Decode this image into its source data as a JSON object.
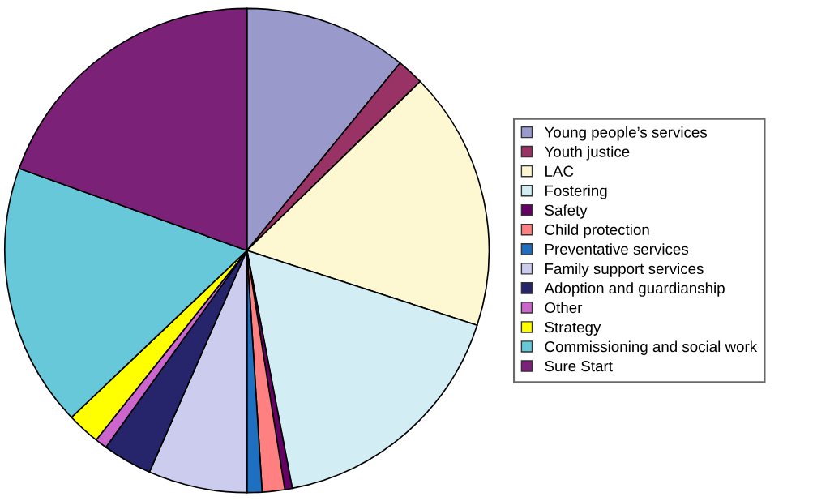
{
  "chart_data": {
    "type": "pie",
    "categories": [
      "Young people’s services",
      "Youth justice",
      "LAC",
      "Fostering",
      "Safety",
      "Child protection",
      "Preventative services",
      "Family support services",
      "Adoption and guardianship",
      "Other",
      "Strategy",
      "Commissioning and social work",
      "Sure Start"
    ],
    "values": [
      10.9,
      1.8,
      17.3,
      17.0,
      0.5,
      1.5,
      1.0,
      6.6,
      3.3,
      0.8,
      2.2,
      17.6,
      19.5
    ],
    "colors": [
      "#9999cc",
      "#993366",
      "#fdf8d2",
      "#d2eef4",
      "#660066",
      "#ff8080",
      "#1f6fc0",
      "#ccccee",
      "#26246b",
      "#cc66cc",
      "#ffff00",
      "#66c8d8",
      "#7b2177"
    ],
    "legend": "right"
  }
}
